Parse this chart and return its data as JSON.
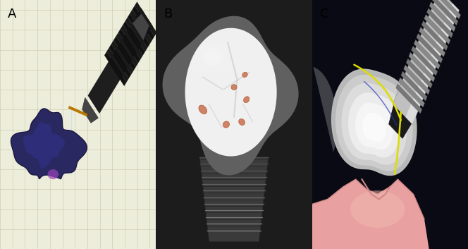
{
  "panels": [
    "A",
    "B",
    "C"
  ],
  "panel_label_fontsize": 13,
  "panel_label_color": "#000000",
  "panel_A_bg": "#ededdc",
  "panel_B_bg": "#1c1c1c",
  "panel_C_bg": "#0a0a14",
  "overall_bg": "#ffffff",
  "figsize": [
    6.64,
    3.53
  ],
  "dpi": 100,
  "grid_color": "#c8c8a8",
  "screw_body_color": "#181818",
  "screw_thread_color": "#0a0a0a",
  "abutment_color": "#555555",
  "vector_color": "#b87800",
  "crown_fill": "#2a2860",
  "crown_edge": "#1a1840",
  "crown_highlight": "#6633aa",
  "implant_B_body": "#888888",
  "implant_B_thread": "#666666",
  "contact_fill": "#cc7755",
  "contact_edge": "#aa5533",
  "implant_C_silver": "#b0b0b0",
  "implant_C_thread": "#909090",
  "implant_C_dark": "#2a2a2a",
  "crown_C_outer": "#d0d0d0",
  "crown_C_mid": "#e8e8e8",
  "crown_C_inner": "#f8f8f8",
  "yellow_curve": "#dddd00",
  "blue_outline": "#2233bb",
  "gingiva_fill": "#e8a0a0",
  "gingiva_edge": "#d08888"
}
